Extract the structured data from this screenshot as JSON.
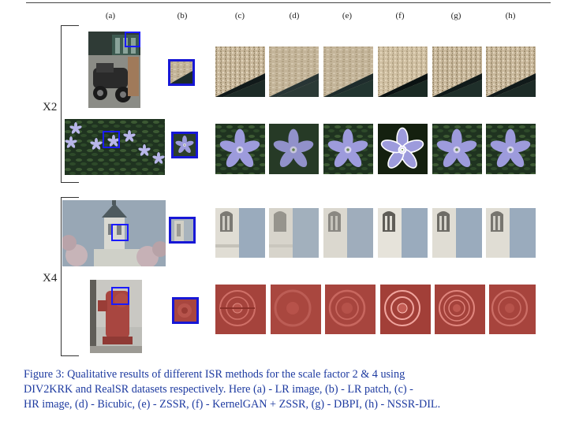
{
  "columns": [
    "(a)",
    "(b)",
    "(c)",
    "(d)",
    "(e)",
    "(f)",
    "(g)",
    "(h)"
  ],
  "scales": [
    "X2",
    "X4"
  ],
  "rows": [
    {
      "scale": "X2",
      "subject": "car-street-scene",
      "patch": "textured-wall"
    },
    {
      "scale": "X2",
      "subject": "blue-flowers",
      "patch": "flower"
    },
    {
      "scale": "X4",
      "subject": "tower-building",
      "patch": "building-window"
    },
    {
      "scale": "X4",
      "subject": "fire-hydrant",
      "patch": "hydrant-cap"
    }
  ],
  "caption": {
    "line1": "Figure 3:  Qualitative results of different ISR methods for the scale factor 2 & 4 using",
    "line2": "DIV2KRK and RealSR datasets respectively.  Here (a) - LR image, (b) - LR patch, (c) -",
    "line3": "HR image, (d) - Bicubic, (e) - ZSSR, (f) - KernelGAN + ZSSR, (g) - DBPI, (h) - NSSR-DIL."
  },
  "colors": {
    "patch_border": "#1717d6",
    "caption_text": "#1d3aa0"
  }
}
